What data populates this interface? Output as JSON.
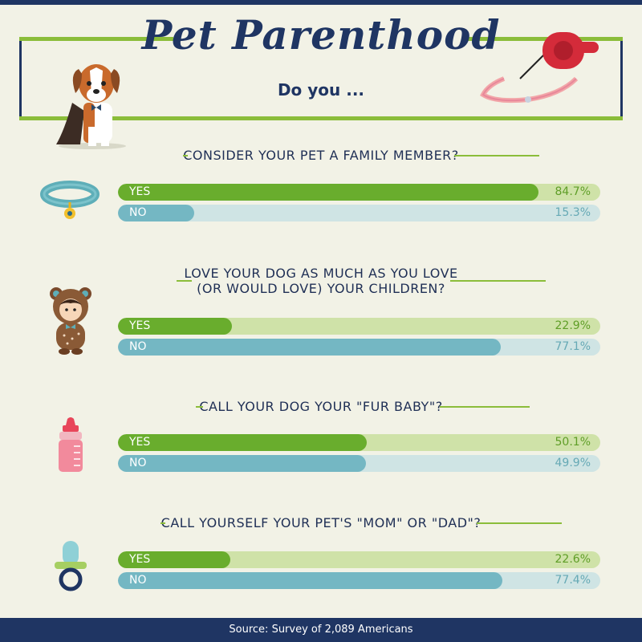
{
  "title": "Pet Parenthood",
  "subtitle": "Do you ...",
  "footer": "Source: Survey of 2,089 Americans",
  "colors": {
    "navy": "#1f3563",
    "green": "#69ad2d",
    "teal": "#74b7c3",
    "lime_line": "#8bbd3a"
  },
  "icons": [
    "dog-icon",
    "leash-icon",
    "collar-icon",
    "bear-costume-baby-icon",
    "baby-bottle-icon",
    "pacifier-icon"
  ],
  "chart_data": {
    "type": "bar",
    "unit": "%",
    "xlim": [
      0,
      100
    ],
    "questions": [
      {
        "lines": [
          "CONSIDER YOUR PET A FAMILY MEMBER?"
        ],
        "answers": [
          {
            "label": "YES",
            "value": 84.7,
            "text": "84.7%"
          },
          {
            "label": "NO",
            "value": 15.3,
            "text": "15.3%"
          }
        ]
      },
      {
        "lines": [
          "LOVE YOUR DOG AS MUCH AS YOU LOVE",
          "(OR WOULD LOVE) YOUR CHILDREN?"
        ],
        "answers": [
          {
            "label": "YES",
            "value": 22.9,
            "text": "22.9%"
          },
          {
            "label": "NO",
            "value": 77.1,
            "text": "77.1%"
          }
        ]
      },
      {
        "lines": [
          "CALL YOUR DOG YOUR \"FUR BABY\"?"
        ],
        "answers": [
          {
            "label": "YES",
            "value": 50.1,
            "text": "50.1%"
          },
          {
            "label": "NO",
            "value": 49.9,
            "text": "49.9%"
          }
        ]
      },
      {
        "lines": [
          "CALL YOURSELF YOUR PET'S \"MOM\" OR \"DAD\"?"
        ],
        "answers": [
          {
            "label": "YES",
            "value": 22.6,
            "text": "22.6%"
          },
          {
            "label": "NO",
            "value": 77.4,
            "text": "77.4%"
          }
        ]
      }
    ]
  }
}
